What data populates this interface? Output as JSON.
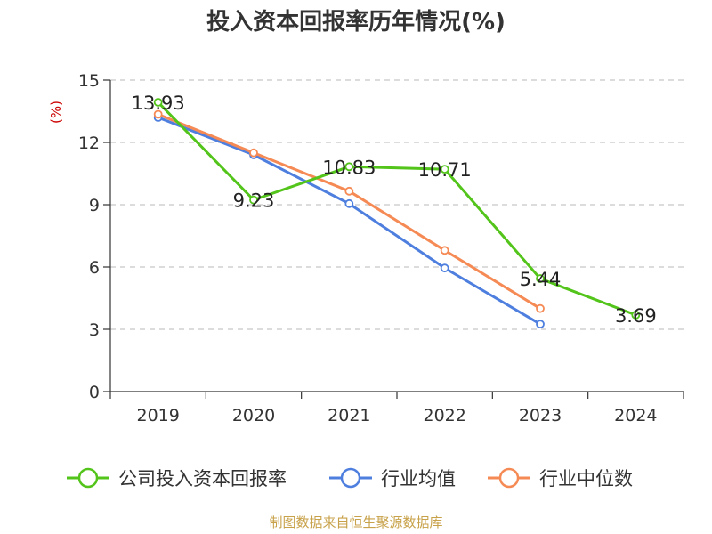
{
  "chart_data": {
    "type": "line",
    "title": "投入资本回报率历年情况(%)",
    "ylabel": "(%)",
    "xlabel": "",
    "categories": [
      "2019",
      "2020",
      "2021",
      "2022",
      "2023",
      "2024"
    ],
    "ylim": [
      0,
      15
    ],
    "yticks": [
      0,
      3,
      6,
      9,
      12,
      15
    ],
    "grid": true,
    "legend_position": "bottom",
    "series": [
      {
        "name": "公司投入资本回报率",
        "color": "#52c41a",
        "values": [
          13.93,
          9.23,
          10.83,
          10.71,
          5.44,
          3.69
        ],
        "labels": [
          "13.93",
          "9.23",
          "10.83",
          "10.71",
          "5.44",
          "3.69"
        ]
      },
      {
        "name": "行业均值",
        "color": "#4e7fdf",
        "values": [
          13.2,
          11.4,
          9.05,
          5.95,
          3.25,
          null
        ]
      },
      {
        "name": "行业中位数",
        "color": "#f58a55",
        "values": [
          13.35,
          11.5,
          9.65,
          6.8,
          4.0,
          null
        ]
      }
    ],
    "label_color": "#cc0000"
  },
  "source": "制图数据来自恒生聚源数据库"
}
